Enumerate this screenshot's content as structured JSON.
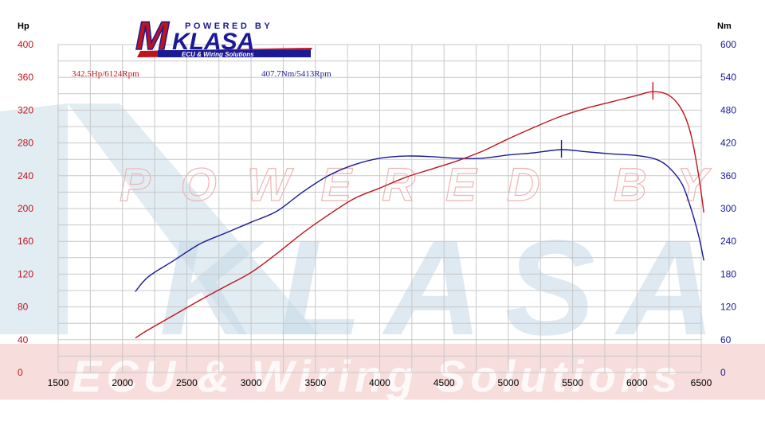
{
  "logo": {
    "tagline_top": "POWERED BY",
    "letter_m": "M",
    "name": "KLASA",
    "tagline_bottom": "ECU & Wiring Solutions"
  },
  "watermark": {
    "line1": "POWERED BY",
    "line2": "KLASA",
    "line3": "ECU & Wiring Solutions"
  },
  "colors": {
    "power": "#c0141c",
    "torque": "#1a1a96",
    "grid": "#c8c8c8",
    "watermark_blue": "#c9dcea",
    "watermark_red": "#f3c6c6"
  },
  "chart_data": {
    "type": "line",
    "title": "",
    "xlabel": "",
    "ylabel_left": "Hp",
    "ylabel_right": "Nm",
    "xlim": [
      1500,
      6500
    ],
    "ylim_left": [
      0,
      400
    ],
    "ylim_right": [
      0,
      600
    ],
    "grid": true,
    "x_ticks": [
      "1500",
      "2000",
      "2500",
      "3000",
      "3500",
      "4000",
      "4500",
      "5000",
      "5500",
      "6000",
      "6500"
    ],
    "y_left_ticks": [
      "0",
      "40",
      "80",
      "120",
      "160",
      "200",
      "240",
      "280",
      "320",
      "360",
      "400"
    ],
    "y_right_ticks": [
      "0",
      "60",
      "120",
      "180",
      "240",
      "300",
      "360",
      "420",
      "480",
      "540",
      "600"
    ],
    "annotations": {
      "power_peak": "342.5Hp/6124Rpm",
      "torque_peak": "407.7Nm/5413Rpm"
    },
    "series": [
      {
        "axis": "left",
        "peak": [
          6124,
          342.5
        ],
        "points": [
          [
            2100,
            42
          ],
          [
            2200,
            52
          ],
          [
            2400,
            70
          ],
          [
            2600,
            88
          ],
          [
            2800,
            105
          ],
          [
            3000,
            122
          ],
          [
            3200,
            145
          ],
          [
            3400,
            170
          ],
          [
            3600,
            192
          ],
          [
            3800,
            212
          ],
          [
            4000,
            225
          ],
          [
            4200,
            238
          ],
          [
            4400,
            248
          ],
          [
            4600,
            258
          ],
          [
            4800,
            270
          ],
          [
            5000,
            285
          ],
          [
            5200,
            299
          ],
          [
            5400,
            312
          ],
          [
            5600,
            322
          ],
          [
            5800,
            330
          ],
          [
            6000,
            338
          ],
          [
            6124,
            342.5
          ],
          [
            6250,
            338
          ],
          [
            6350,
            320
          ],
          [
            6420,
            290
          ],
          [
            6480,
            240
          ],
          [
            6520,
            195
          ]
        ]
      },
      {
        "axis": "right",
        "peak": [
          5413,
          407.7
        ],
        "points": [
          [
            2100,
            148
          ],
          [
            2200,
            175
          ],
          [
            2400,
            205
          ],
          [
            2600,
            235
          ],
          [
            2800,
            255
          ],
          [
            3000,
            275
          ],
          [
            3200,
            295
          ],
          [
            3400,
            330
          ],
          [
            3600,
            360
          ],
          [
            3800,
            380
          ],
          [
            4000,
            392
          ],
          [
            4200,
            396
          ],
          [
            4400,
            395
          ],
          [
            4600,
            392
          ],
          [
            4800,
            392
          ],
          [
            5000,
            398
          ],
          [
            5200,
            402
          ],
          [
            5413,
            407.7
          ],
          [
            5600,
            404
          ],
          [
            5800,
            400
          ],
          [
            6000,
            397
          ],
          [
            6150,
            390
          ],
          [
            6250,
            375
          ],
          [
            6350,
            345
          ],
          [
            6420,
            300
          ],
          [
            6480,
            250
          ],
          [
            6520,
            205
          ]
        ]
      }
    ]
  }
}
